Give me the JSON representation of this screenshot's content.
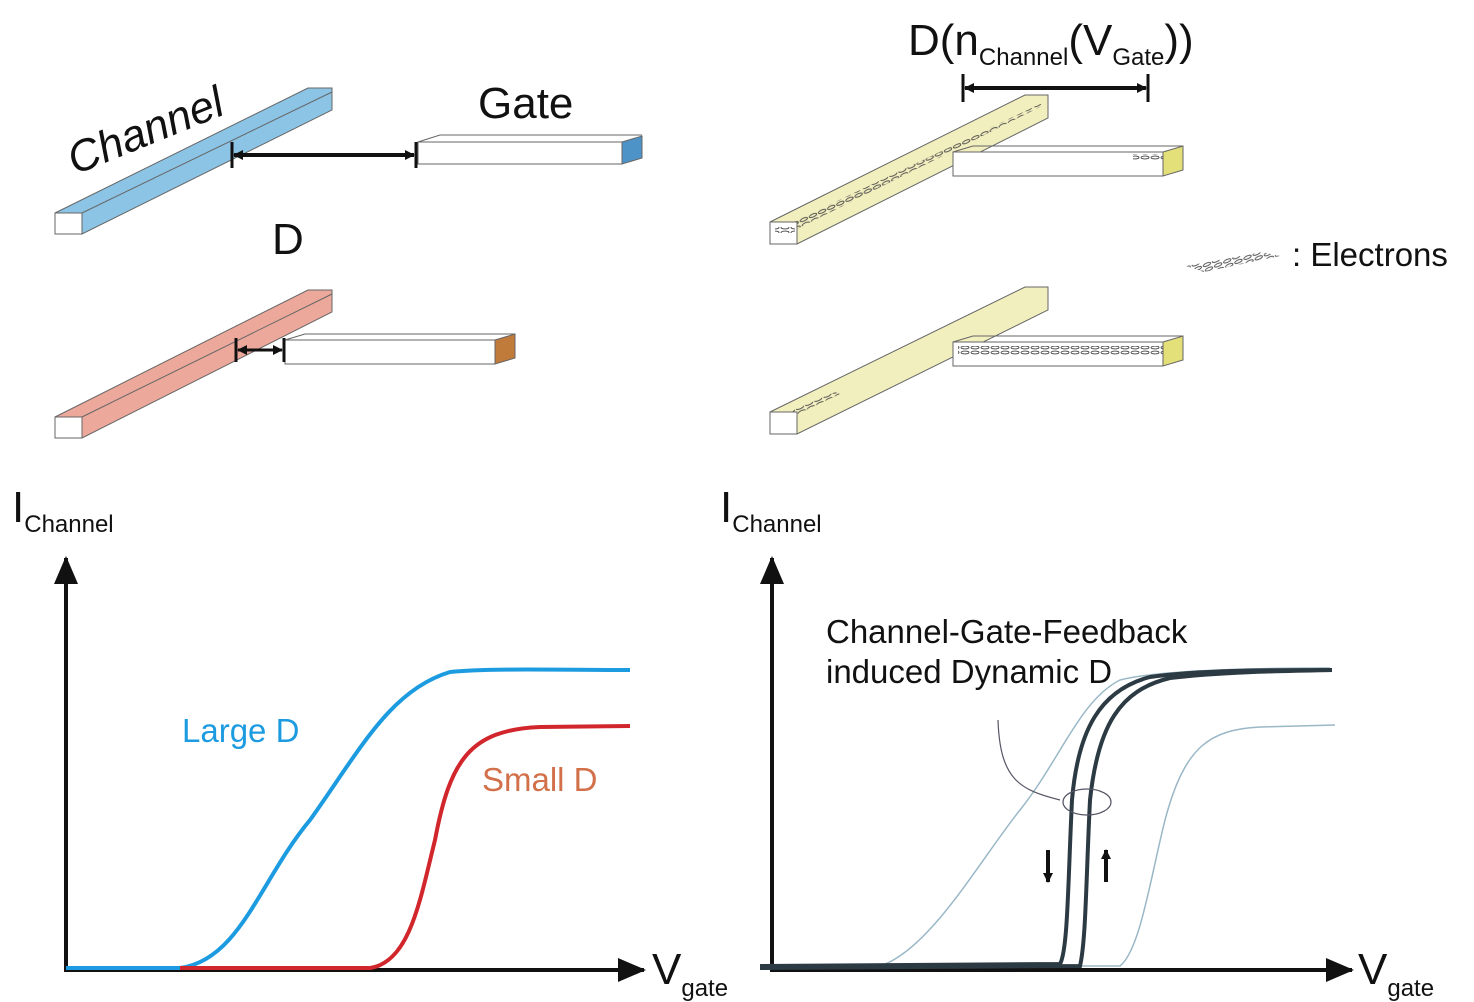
{
  "left_panel": {
    "channel_label": "Channel",
    "gate_label": "Gate",
    "distance_label": "D",
    "y_axis": {
      "symbol": "I",
      "subscript": "Channel"
    },
    "x_axis": {
      "symbol": "V",
      "subscript": "gate"
    },
    "curve_labels": [
      "Large D",
      "Small D"
    ]
  },
  "right_panel": {
    "distance_label": [
      "D(n",
      "Channel",
      "(V",
      "Gate",
      "))"
    ],
    "legend": ": Electrons",
    "y_axis": {
      "symbol": "I",
      "subscript": "Channel"
    },
    "x_axis": {
      "symbol": "V",
      "subscript": "gate"
    },
    "annotation": [
      "Channel-Gate-Feedback",
      "induced Dynamic D"
    ]
  }
}
